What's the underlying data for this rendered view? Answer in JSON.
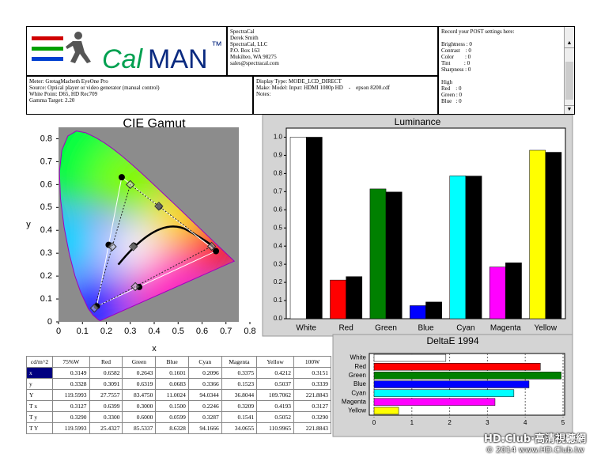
{
  "header": {
    "logo": {
      "cal": "Cal",
      "man": "MAN",
      "tm": "™"
    },
    "contact": [
      "SpectraCal",
      "Derek Smith",
      "SpectraCal, LLC",
      "P.O. Box 163",
      "Mukilteo, WA 98275",
      "sales@spectracal.com"
    ],
    "post": [
      "Record your POST settings here:",
      "Brightness : 0",
      "Contrast    : 0",
      "Color        : 0",
      "Tint          : 0",
      "Sharpness : 0",
      "High",
      "Red    : 0",
      "Green : 0",
      "Blue   : 0"
    ]
  },
  "info": {
    "meter": [
      "Meter: GretagMacbeth EyeOne Pro",
      "Source: Optical player or video generator (manual control)",
      "White Point: D65, HD Rec709",
      "Gamma Target: 2.20"
    ],
    "display": [
      "Display Type: MODE_LCD_DIRECT",
      "Make: Model: Input: HDMI 1080p HD    -    epson 8200.cdf",
      "Notes:"
    ]
  },
  "chart_data": [
    {
      "type": "scatter",
      "title": "CIE Gamut",
      "x_label": "x",
      "y_label": "y",
      "xlim": [
        0,
        0.8
      ],
      "ylim": [
        0,
        0.85
      ],
      "xticks": [
        0,
        0.1,
        0.2,
        0.3,
        0.4,
        0.5,
        0.6,
        0.7,
        0.8
      ],
      "yticks": [
        0,
        0.1,
        0.2,
        0.3,
        0.4,
        0.5,
        0.6,
        0.7,
        0.8
      ],
      "series": [
        {
          "color": "#000000",
          "marker": "circle",
          "x": [
            0.3149,
            0.6582,
            0.2643,
            0.1601,
            0.2096,
            0.3375,
            0.4212
          ],
          "y": [
            0.3328,
            0.3091,
            0.6319,
            0.0683,
            0.3366,
            0.1523,
            0.5037
          ]
        },
        {
          "color": "#333333",
          "marker": "diamond",
          "x": [
            0.3127,
            0.64,
            0.3,
            0.15,
            0.2246,
            0.3209,
            0.4193
          ],
          "y": [
            0.329,
            0.33,
            0.6,
            0.06,
            0.3287,
            0.1541,
            0.5052
          ]
        }
      ]
    },
    {
      "type": "bar",
      "title": "Luminance",
      "categories": [
        "White",
        "Red",
        "Green",
        "Blue",
        "Cyan",
        "Magenta",
        "Yellow"
      ],
      "ylim": [
        0,
        1.05
      ],
      "yticks": [
        {
          "value": 0,
          "label": "0.0"
        },
        0.1,
        0.2,
        0.3,
        0.4,
        0.5,
        0.6,
        0.7,
        0.8,
        0.9,
        {
          "value": 1,
          "label": "1.0"
        }
      ],
      "grid": false,
      "series": [
        {
          "colors": [
            "#ffffff",
            "#ff0000",
            "#008000",
            "#0000ff",
            "#00ffff",
            "#ff00ff",
            "#ffff00"
          ],
          "values": [
            1.0,
            0.213,
            0.715,
            0.072,
            0.787,
            0.285,
            0.928
          ]
        },
        {
          "color": "#000000",
          "values": [
            1.0,
            0.232,
            0.698,
            0.092,
            0.786,
            0.308,
            0.917
          ]
        }
      ]
    },
    {
      "type": "barh",
      "title": "DeltaE 1994",
      "categories": [
        "White",
        "Red",
        "Green",
        "Blue",
        "Cyan",
        "Magenta",
        "Yellow"
      ],
      "xlim": [
        0,
        5
      ],
      "xticks": [
        0,
        1,
        2,
        3,
        4,
        5
      ],
      "grid": true,
      "colors": [
        "#ffffff",
        "#ff0000",
        "#008000",
        "#0000ff",
        "#00ffff",
        "#ff00ff",
        "#ffff00"
      ],
      "values": [
        1.9,
        4.4,
        4.95,
        4.1,
        3.7,
        3.2,
        0.65
      ]
    }
  ],
  "table": {
    "header": [
      "cd/m^2",
      "75%W",
      "Red",
      "Green",
      "Blue",
      "Cyan",
      "Magenta",
      "Yellow",
      "100W"
    ],
    "rows": [
      [
        "x",
        "0.3149",
        "0.6582",
        "0.2643",
        "0.1601",
        "0.2096",
        "0.3375",
        "0.4212",
        "0.3151"
      ],
      [
        "y",
        "0.3328",
        "0.3091",
        "0.6319",
        "0.0683",
        "0.3366",
        "0.1523",
        "0.5037",
        "0.3339"
      ],
      [
        "Y",
        "119.5993",
        "27.7557",
        "83.4750",
        "11.0024",
        "94.0344",
        "36.8044",
        "109.7062",
        "221.8843"
      ],
      [
        "T x",
        "0.3127",
        "0.6399",
        "0.3000",
        "0.1500",
        "0.2246",
        "0.3209",
        "0.4193",
        "0.3127"
      ],
      [
        "T y",
        "0.3290",
        "0.3300",
        "0.6000",
        "0.0599",
        "0.3287",
        "0.1541",
        "0.5052",
        "0.3290"
      ],
      [
        "T Y",
        "119.5993",
        "25.4327",
        "85.5337",
        "8.6328",
        "94.1666",
        "34.0655",
        "110.9965",
        "221.8843"
      ]
    ]
  },
  "watermark": {
    "brand": "HD.Club",
    "tagline": "·高清視聽網",
    "copyright": "© 2014 www.HD.Club.tw"
  }
}
